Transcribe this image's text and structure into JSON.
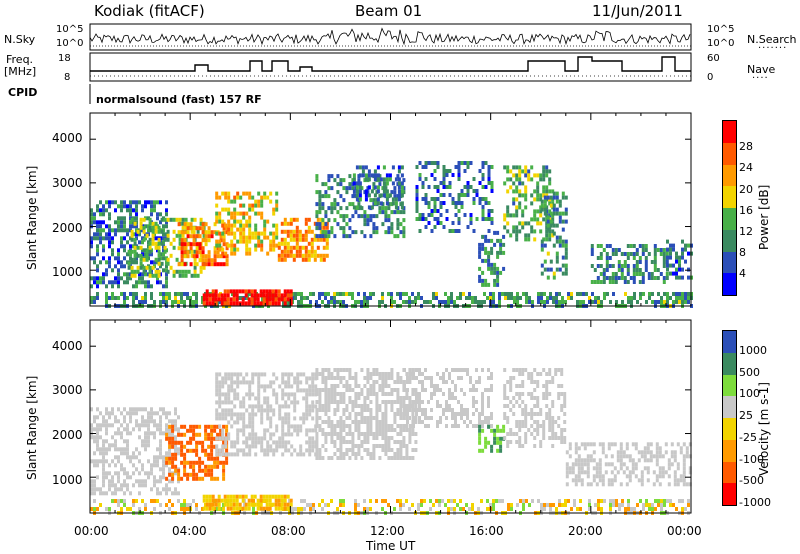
{
  "header": {
    "station": "Kodiak (fitACF)",
    "beam": "Beam 01",
    "date": "11/Jun/2011"
  },
  "summary_panels": {
    "nsky_label": "N.Sky",
    "nsky_ticks": [
      "10^5",
      "10^0"
    ],
    "nsearch_label": "N.Search",
    "nsearch_ticks": [
      "10^5",
      "10^0"
    ],
    "freq_label": "Freq.",
    "freq_unit": "[MHz]",
    "freq_ticks": [
      "18",
      "8"
    ],
    "nave_label": "Nave",
    "nave_ticks": [
      "60",
      "0"
    ],
    "cpid_label": "CPID",
    "cpid_value": "normalsound (fast) 157 RF"
  },
  "colors": {
    "power_scale": [
      "#0000ff",
      "#2b4fb8",
      "#3a8a60",
      "#48b048",
      "#f2d400",
      "#ff9a00",
      "#ff5a00",
      "#ff0000"
    ],
    "velocity_scale": [
      "#ff0000",
      "#ff5a00",
      "#ff9a00",
      "#f2d400",
      "#c8c8c8",
      "#7ddc3c",
      "#3a8a60",
      "#2b4fb8"
    ],
    "ground_scatter": "#c8c8c8"
  },
  "chart_data": [
    {
      "type": "heatmap",
      "name": "power",
      "ylabel": "Slant Range [km]",
      "xlim_hours": [
        0,
        24
      ],
      "ylim_km": [
        180,
        4600
      ],
      "yticks": [
        "1000",
        "2000",
        "3000",
        "4000"
      ],
      "colorbar_label": "Power [dB]",
      "colorbar_ticks": [
        "4",
        "8",
        "12",
        "16",
        "20",
        "24",
        "28"
      ],
      "colorbar_range": [
        0,
        32
      ],
      "regions": [
        {
          "t0": 0.0,
          "t1": 24.0,
          "r0": 200,
          "r1": 500,
          "level": 0.35,
          "density": 0.55
        },
        {
          "t0": 0.0,
          "t1": 3.0,
          "r0": 600,
          "r1": 2600,
          "level": 0.25,
          "density": 0.55
        },
        {
          "t0": 1.5,
          "t1": 4.5,
          "r0": 900,
          "r1": 2200,
          "level": 0.45,
          "density": 0.5
        },
        {
          "t0": 3.5,
          "t1": 5.5,
          "r0": 1100,
          "r1": 2100,
          "level": 0.75,
          "density": 0.6
        },
        {
          "t0": 4.5,
          "t1": 8.0,
          "r0": 280,
          "r1": 560,
          "level": 0.95,
          "density": 0.9
        },
        {
          "t0": 5.0,
          "t1": 7.5,
          "r0": 1400,
          "r1": 2800,
          "level": 0.6,
          "density": 0.5
        },
        {
          "t0": 7.5,
          "t1": 9.5,
          "r0": 1200,
          "r1": 2200,
          "level": 0.7,
          "density": 0.6
        },
        {
          "t0": 9.0,
          "t1": 12.5,
          "r0": 1800,
          "r1": 3200,
          "level": 0.3,
          "density": 0.45
        },
        {
          "t0": 10.5,
          "t1": 12.5,
          "r0": 2400,
          "r1": 3400,
          "level": 0.25,
          "density": 0.5
        },
        {
          "t0": 13.0,
          "t1": 16.0,
          "r0": 1900,
          "r1": 3500,
          "level": 0.25,
          "density": 0.35
        },
        {
          "t0": 15.5,
          "t1": 16.5,
          "r0": 700,
          "r1": 1900,
          "level": 0.3,
          "density": 0.35
        },
        {
          "t0": 16.5,
          "t1": 18.5,
          "r0": 1700,
          "r1": 3400,
          "level": 0.4,
          "density": 0.45
        },
        {
          "t0": 18.0,
          "t1": 19.0,
          "r0": 800,
          "r1": 2800,
          "level": 0.35,
          "density": 0.4
        },
        {
          "t0": 20.0,
          "t1": 23.0,
          "r0": 700,
          "r1": 1600,
          "level": 0.3,
          "density": 0.5
        },
        {
          "t0": 23.0,
          "t1": 24.0,
          "r0": 800,
          "r1": 1700,
          "level": 0.25,
          "density": 0.5
        }
      ]
    },
    {
      "type": "heatmap",
      "name": "velocity",
      "ylabel": "Slant Range [km]",
      "xlim_hours": [
        0,
        24
      ],
      "ylim_km": [
        180,
        4600
      ],
      "yticks": [
        "1000",
        "2000",
        "3000",
        "4000"
      ],
      "xlabel": "Time UT",
      "xticks": [
        "00:00",
        "04:00",
        "08:00",
        "12:00",
        "16:00",
        "20:00",
        "00:00"
      ],
      "colorbar_label": "Velocity [m s-1]",
      "colorbar_ticks": [
        "1000",
        "500",
        "100",
        "25",
        "-25",
        "-100",
        "-500",
        "-1000"
      ],
      "regions": [
        {
          "t0": 0.0,
          "t1": 24.0,
          "r0": 200,
          "r1": 500,
          "kind": "mixed",
          "density": 0.45
        },
        {
          "t0": 0.0,
          "t1": 3.5,
          "r0": 600,
          "r1": 2600,
          "kind": "ground",
          "density": 0.5
        },
        {
          "t0": 3.0,
          "t1": 5.5,
          "r0": 1000,
          "r1": 2200,
          "kind": "neg",
          "density": 0.6
        },
        {
          "t0": 4.5,
          "t1": 8.0,
          "r0": 300,
          "r1": 600,
          "kind": "neg_small",
          "density": 0.85
        },
        {
          "t0": 5.0,
          "t1": 9.0,
          "r0": 1500,
          "r1": 3400,
          "kind": "ground",
          "density": 0.55
        },
        {
          "t0": 9.0,
          "t1": 13.0,
          "r0": 1400,
          "r1": 3500,
          "kind": "ground",
          "density": 0.6
        },
        {
          "t0": 12.5,
          "t1": 16.0,
          "r0": 2200,
          "r1": 3500,
          "kind": "ground",
          "density": 0.45
        },
        {
          "t0": 15.5,
          "t1": 16.5,
          "r0": 1600,
          "r1": 2200,
          "kind": "pos",
          "density": 0.5
        },
        {
          "t0": 16.5,
          "t1": 19.0,
          "r0": 1700,
          "r1": 3500,
          "kind": "ground",
          "density": 0.45
        },
        {
          "t0": 19.0,
          "t1": 24.0,
          "r0": 800,
          "r1": 1800,
          "kind": "ground",
          "density": 0.5
        }
      ]
    }
  ]
}
